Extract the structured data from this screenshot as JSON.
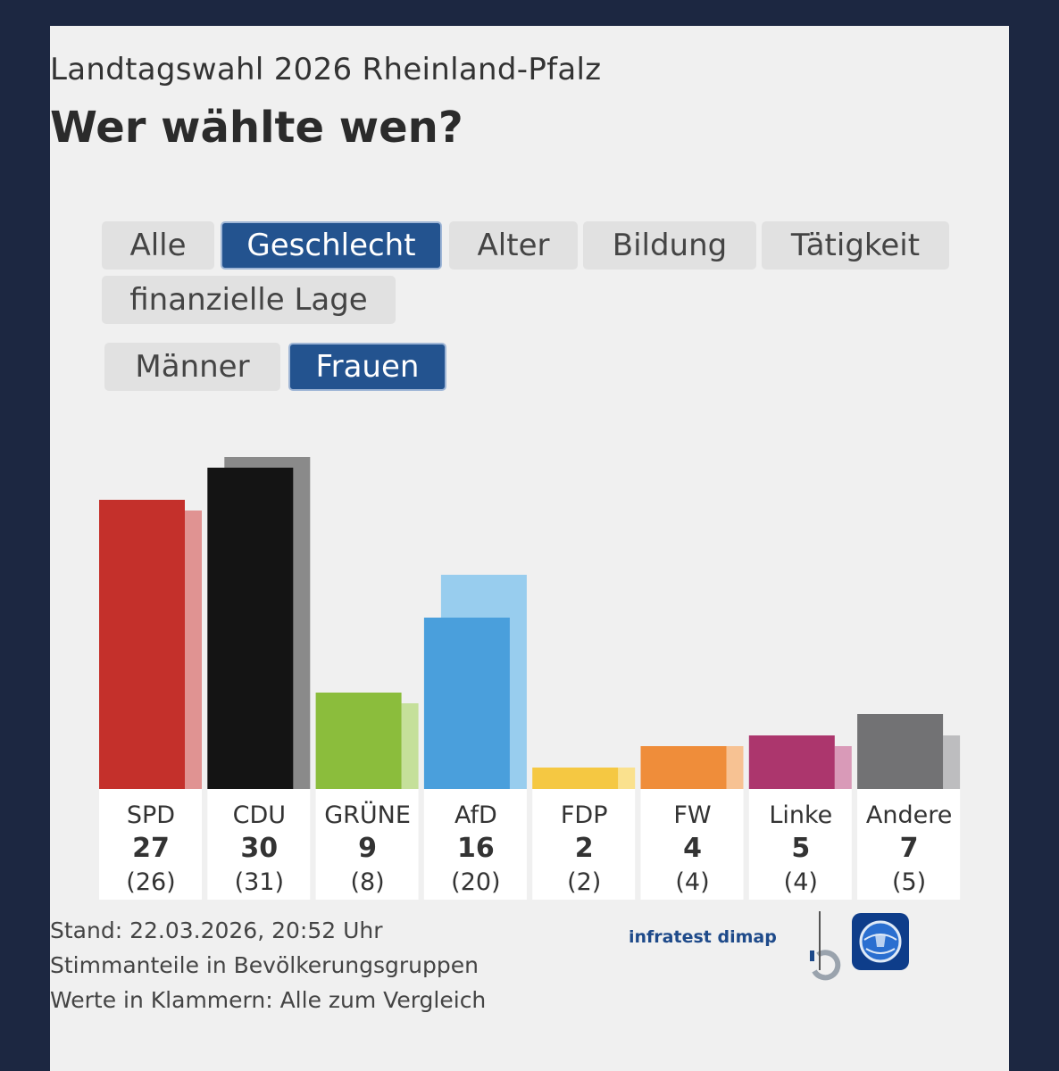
{
  "header": {
    "subtitle": "Landtagswahl 2026 Rheinland-Pfalz",
    "title": "Wer wählte wen?"
  },
  "tabs": {
    "categories": [
      "Alle",
      "Geschlecht",
      "Alter",
      "Bildung",
      "Tätigkeit",
      "finanzielle Lage"
    ],
    "selected_category": "Geschlecht",
    "groups": [
      "Männer",
      "Frauen"
    ],
    "selected_group": "Frauen"
  },
  "colors": {
    "accent": "#23538f",
    "card_background": "#f0f0f0",
    "page_background": "#1c2741"
  },
  "chart_data": {
    "type": "bar",
    "categories": [
      "SPD",
      "CDU",
      "GRÜNE",
      "AfD",
      "FDP",
      "FW",
      "Linke",
      "Andere"
    ],
    "series": [
      {
        "name": "Frauen",
        "values": [
          27,
          30,
          9,
          16,
          2,
          4,
          5,
          7
        ],
        "colors": [
          "#c4302b",
          "#141414",
          "#8bbd3c",
          "#4a9fdc",
          "#f5c842",
          "#ef8d3a",
          "#ac366d",
          "#727274"
        ]
      },
      {
        "name": "Alle",
        "values": [
          26,
          31,
          8,
          20,
          2,
          4,
          4,
          5
        ],
        "colors": [
          "#e09392",
          "#8a8a8a",
          "#c5e09a",
          "#98cdee",
          "#fae18e",
          "#f7c293",
          "#d99ab8",
          "#bdbdbf"
        ]
      }
    ],
    "value_labels": [
      "27",
      "30",
      "9",
      "16",
      "2",
      "4",
      "5",
      "7"
    ],
    "compare_labels": [
      "(26)",
      "(31)",
      "(8)",
      "(20)",
      "(2)",
      "(4)",
      "(4)",
      "(5)"
    ],
    "ylim": [
      0,
      31
    ],
    "grid": false,
    "legend": "none"
  },
  "footer": {
    "stand": "Stand: 22.03.2026, 20:52 Uhr",
    "line2": "Stimmanteile in Bevölkerungsgruppen",
    "line3": "Werte in Klammern: Alle zum Vergleich",
    "infratest": "infratest dimap",
    "infratest_icon": "infratest-logo-icon",
    "broadcaster_icon": "tagesschau-globe-icon"
  }
}
